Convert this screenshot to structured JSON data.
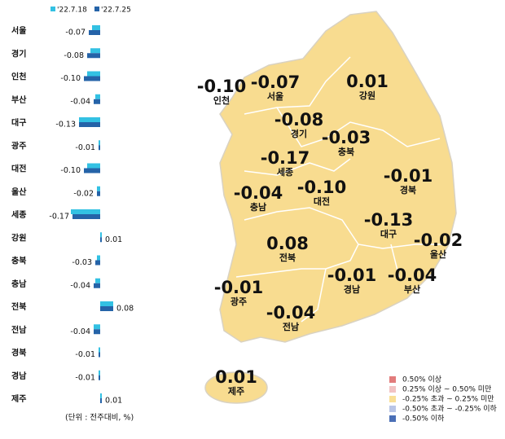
{
  "chart_data": {
    "type": "bar",
    "orientation": "horizontal",
    "categories": [
      "서울",
      "경기",
      "인천",
      "부산",
      "대구",
      "광주",
      "대전",
      "울산",
      "세종",
      "강원",
      "충북",
      "충남",
      "전북",
      "전남",
      "경북",
      "경남",
      "제주"
    ],
    "series": [
      {
        "name": "'22.7.18",
        "color": "#33c1e3",
        "values": [
          -0.05,
          -0.06,
          -0.08,
          -0.03,
          -0.13,
          -0.01,
          -0.08,
          -0.02,
          -0.18,
          0.01,
          -0.02,
          -0.03,
          0.08,
          -0.04,
          -0.01,
          -0.01,
          0.01
        ]
      },
      {
        "name": "'22.7.25",
        "color": "#2563a8",
        "values": [
          -0.07,
          -0.08,
          -0.1,
          -0.04,
          -0.13,
          -0.01,
          -0.1,
          -0.02,
          -0.17,
          0.01,
          -0.03,
          -0.04,
          0.08,
          -0.04,
          -0.01,
          -0.01,
          0.01
        ],
        "value_labels": [
          "-0.07",
          "-0.08",
          "-0.10",
          "-0.04",
          "-0.13",
          "-0.01",
          "-0.10",
          "-0.02",
          "-0.17",
          "0.01",
          "-0.03",
          "-0.04",
          "0.08",
          "-0.04",
          "-0.01",
          "-0.01",
          "0.01"
        ]
      }
    ],
    "xlim": [
      -0.3,
      0.3
    ],
    "note": "(단위 : 전주대비, %)"
  },
  "map_legend": [
    {
      "label": "0.50% 이상",
      "color": "#e27c7c"
    },
    {
      "label": "0.25% 이상 ~ 0.50% 미만",
      "color": "#f2c3c3"
    },
    {
      "label": "-0.25% 초과 ~ 0.25% 미만",
      "color": "#f9df95"
    },
    {
      "label": "-0.50% 초과 ~ -0.25% 이하",
      "color": "#b9c5e6"
    },
    {
      "label": "-0.50% 이하",
      "color": "#4a6fb6"
    }
  ]
}
